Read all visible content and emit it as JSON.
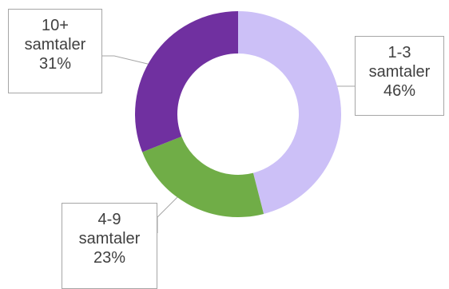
{
  "chart_data": {
    "type": "pie",
    "variant": "donut",
    "start_angle_deg": 0,
    "direction": "clockwise",
    "categories": [
      "1-3 samtaler",
      "4-9 samtaler",
      "10+ samtaler"
    ],
    "values": [
      46,
      23,
      31
    ],
    "unit": "%",
    "colors": [
      "#ccc0f7",
      "#70ad47",
      "#7030a0"
    ],
    "data_labels": [
      {
        "category": "1-3",
        "name": "samtaler",
        "value": "46%"
      },
      {
        "category": "4-9",
        "name": "samtaler",
        "value": "23%"
      },
      {
        "category": "10+",
        "name": "samtaler",
        "value": "31%"
      }
    ],
    "legend": false,
    "title": ""
  }
}
